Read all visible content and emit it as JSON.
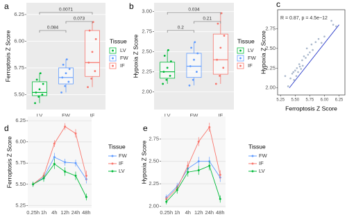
{
  "chart_data": [
    {
      "type": "box",
      "panel": "a",
      "ylabel": "Ferroptosis Z Score",
      "categories": [
        "LV",
        "FW",
        "IF"
      ],
      "colors": [
        "#00BA38",
        "#619CFF",
        "#F8766D"
      ],
      "background": "#ebebeb",
      "grid": true,
      "ylim": [
        5.36,
        6.36
      ],
      "yticks": [
        {
          "value": 5.5,
          "label": "5.50"
        },
        5.75,
        {
          "value": 6,
          "label": "6.00"
        },
        6.25
      ],
      "boxes": [
        {
          "low": 5.42,
          "q1": 5.49,
          "median": 5.52,
          "q3": 5.62,
          "high": 5.7,
          "points": [
            5.42,
            5.48,
            5.5,
            5.52,
            5.55,
            5.6,
            5.64,
            5.7
          ]
        },
        {
          "low": 5.52,
          "q1": 5.6,
          "median": 5.66,
          "q3": 5.75,
          "high": 5.83,
          "points": [
            5.52,
            5.58,
            5.62,
            5.66,
            5.7,
            5.74,
            5.78,
            5.83
          ]
        },
        {
          "low": 5.57,
          "q1": 5.67,
          "median": 5.8,
          "q3": 6.1,
          "high": 6.18,
          "points": [
            5.57,
            5.65,
            5.72,
            5.8,
            5.9,
            6.02,
            6.1,
            6.18
          ]
        }
      ],
      "comparisons": [
        {
          "pair": [
            "LV",
            "FW"
          ],
          "p": 0.084
        },
        {
          "pair": [
            "FW",
            "IF"
          ],
          "p": 0.073
        },
        {
          "pair": [
            "LV",
            "IF"
          ],
          "p": 0.0071
        }
      ],
      "legend_title": "Tissue"
    },
    {
      "type": "box",
      "panel": "b",
      "ylabel": "Hypoxia Z Score",
      "categories": [
        "LV",
        "FW",
        "IF"
      ],
      "colors": [
        "#00BA38",
        "#619CFF",
        "#F8766D"
      ],
      "background": "#ebebeb",
      "grid": true,
      "ylim": [
        1.78,
        3.11
      ],
      "yticks": [
        {
          "value": 2,
          "label": "2.00"
        },
        2.25,
        {
          "value": 2.5,
          "label": "2.50"
        },
        2.75,
        {
          "value": 3,
          "label": "3.00"
        }
      ],
      "boxes": [
        {
          "low": 2.1,
          "q1": 2.17,
          "median": 2.25,
          "q3": 2.37,
          "high": 2.52,
          "points": [
            2.1,
            2.15,
            2.2,
            2.25,
            2.3,
            2.38,
            2.45,
            2.52
          ]
        },
        {
          "low": 2.08,
          "q1": 2.18,
          "median": 2.32,
          "q3": 2.48,
          "high": 2.62,
          "points": [
            2.08,
            2.15,
            2.25,
            2.32,
            2.4,
            2.48,
            2.55,
            2.62
          ]
        },
        {
          "low": 2.1,
          "q1": 2.22,
          "median": 2.4,
          "q3": 2.72,
          "high": 2.98,
          "points": [
            2.1,
            2.2,
            2.3,
            2.4,
            2.55,
            2.7,
            2.85,
            2.98
          ]
        }
      ],
      "comparisons": [
        {
          "pair": [
            "LV",
            "FW"
          ],
          "p": 0.2
        },
        {
          "pair": [
            "FW",
            "IF"
          ],
          "p": 0.21
        },
        {
          "pair": [
            "LV",
            "IF"
          ],
          "p": 0.034
        }
      ],
      "legend_title": "Tissue"
    },
    {
      "type": "scatter",
      "panel": "c",
      "xlabel": "Ferroptosis Z Score",
      "ylabel": "Hypoxia Z Score",
      "annotation": "R = 0.87, p = 4.5e−12",
      "color": "#aab8cc",
      "fit_color": "#3344cc",
      "fit_x": [
        5.4,
        6.25
      ],
      "fit_y": [
        2.0,
        2.8
      ],
      "xlim": [
        5.2,
        6.35
      ],
      "ylim": [
        1.91,
        2.99
      ],
      "xticks": [
        5.25,
        {
          "value": 5.5,
          "label": "5.50"
        },
        5.75,
        {
          "value": 6,
          "label": "6.00"
        },
        6.25
      ],
      "yticks": [
        {
          "value": 2,
          "label": "2.00"
        },
        2.25,
        {
          "value": 2.5,
          "label": "2.50"
        },
        2.75
      ],
      "x": [
        5.33,
        5.38,
        5.42,
        5.45,
        5.47,
        5.48,
        5.5,
        5.52,
        5.53,
        5.55,
        5.57,
        5.58,
        5.6,
        5.62,
        5.63,
        5.65,
        5.68,
        5.7,
        5.72,
        5.75,
        5.78,
        5.8,
        5.85,
        5.9,
        5.95,
        6.0,
        6.12,
        6.15,
        6.2
      ],
      "values": [
        2.15,
        2.02,
        2.12,
        2.18,
        2.2,
        2.1,
        2.22,
        2.15,
        2.25,
        2.2,
        2.3,
        2.27,
        2.24,
        2.35,
        2.28,
        2.4,
        2.38,
        2.5,
        2.42,
        2.45,
        2.55,
        2.48,
        2.58,
        2.62,
        2.57,
        2.65,
        2.85,
        2.8,
        2.78
      ]
    },
    {
      "type": "line",
      "panel": "d",
      "ylabel": "Ferroptosis Z Score",
      "categories": [
        "0.25h",
        "1h",
        "4h",
        "12h",
        "24h",
        "48h"
      ],
      "background": "#f7f7f7",
      "grid": true,
      "ylim": [
        5.22,
        6.3
      ],
      "yticks": [
        5.25,
        {
          "value": 5.5,
          "label": "5.50"
        },
        5.75,
        {
          "value": 6,
          "label": "6.00"
        },
        6.25
      ],
      "legend_title": "Tissue",
      "series": [
        {
          "name": "FW",
          "color": "#619CFF",
          "values": [
            5.5,
            5.58,
            5.82,
            5.76,
            5.75,
            5.56
          ],
          "errors": [
            0.03,
            0.04,
            0.05,
            0.04,
            0.04,
            0.05
          ]
        },
        {
          "name": "IF",
          "color": "#F8766D",
          "values": [
            5.5,
            5.6,
            5.98,
            6.18,
            6.1,
            5.6
          ],
          "errors": [
            0.03,
            0.04,
            0.04,
            0.04,
            0.05,
            0.06
          ]
        },
        {
          "name": "LV",
          "color": "#00BA38",
          "values": [
            5.5,
            5.57,
            5.74,
            5.65,
            5.6,
            5.35
          ],
          "errors": [
            0.03,
            0.04,
            0.06,
            0.05,
            0.05,
            0.04
          ]
        }
      ]
    },
    {
      "type": "line",
      "panel": "e",
      "ylabel": "Hypoxia Z Score",
      "categories": [
        "0.25h",
        "1h",
        "4h",
        "12h",
        "24h",
        "48h"
      ],
      "background": "#f7f7f7",
      "grid": true,
      "ylim": [
        1.98,
        3.0
      ],
      "yticks": [
        {
          "value": 2,
          "label": "2.00"
        },
        2.25,
        {
          "value": 2.5,
          "label": "2.50"
        },
        2.75
      ],
      "legend_title": "Tissue",
      "series": [
        {
          "name": "FW",
          "color": "#619CFF",
          "values": [
            2.1,
            2.22,
            2.42,
            2.5,
            2.5,
            2.32
          ],
          "errors": [
            0.03,
            0.04,
            0.05,
            0.05,
            0.05,
            0.05
          ]
        },
        {
          "name": "IF",
          "color": "#F8766D",
          "values": [
            2.08,
            2.2,
            2.45,
            2.72,
            2.88,
            2.35
          ],
          "errors": [
            0.03,
            0.04,
            0.05,
            0.05,
            0.05,
            0.05
          ]
        },
        {
          "name": "LV",
          "color": "#00BA38",
          "values": [
            2.05,
            2.18,
            2.38,
            2.4,
            2.45,
            2.08
          ],
          "errors": [
            0.03,
            0.04,
            0.05,
            0.05,
            0.05,
            0.04
          ]
        }
      ]
    }
  ]
}
